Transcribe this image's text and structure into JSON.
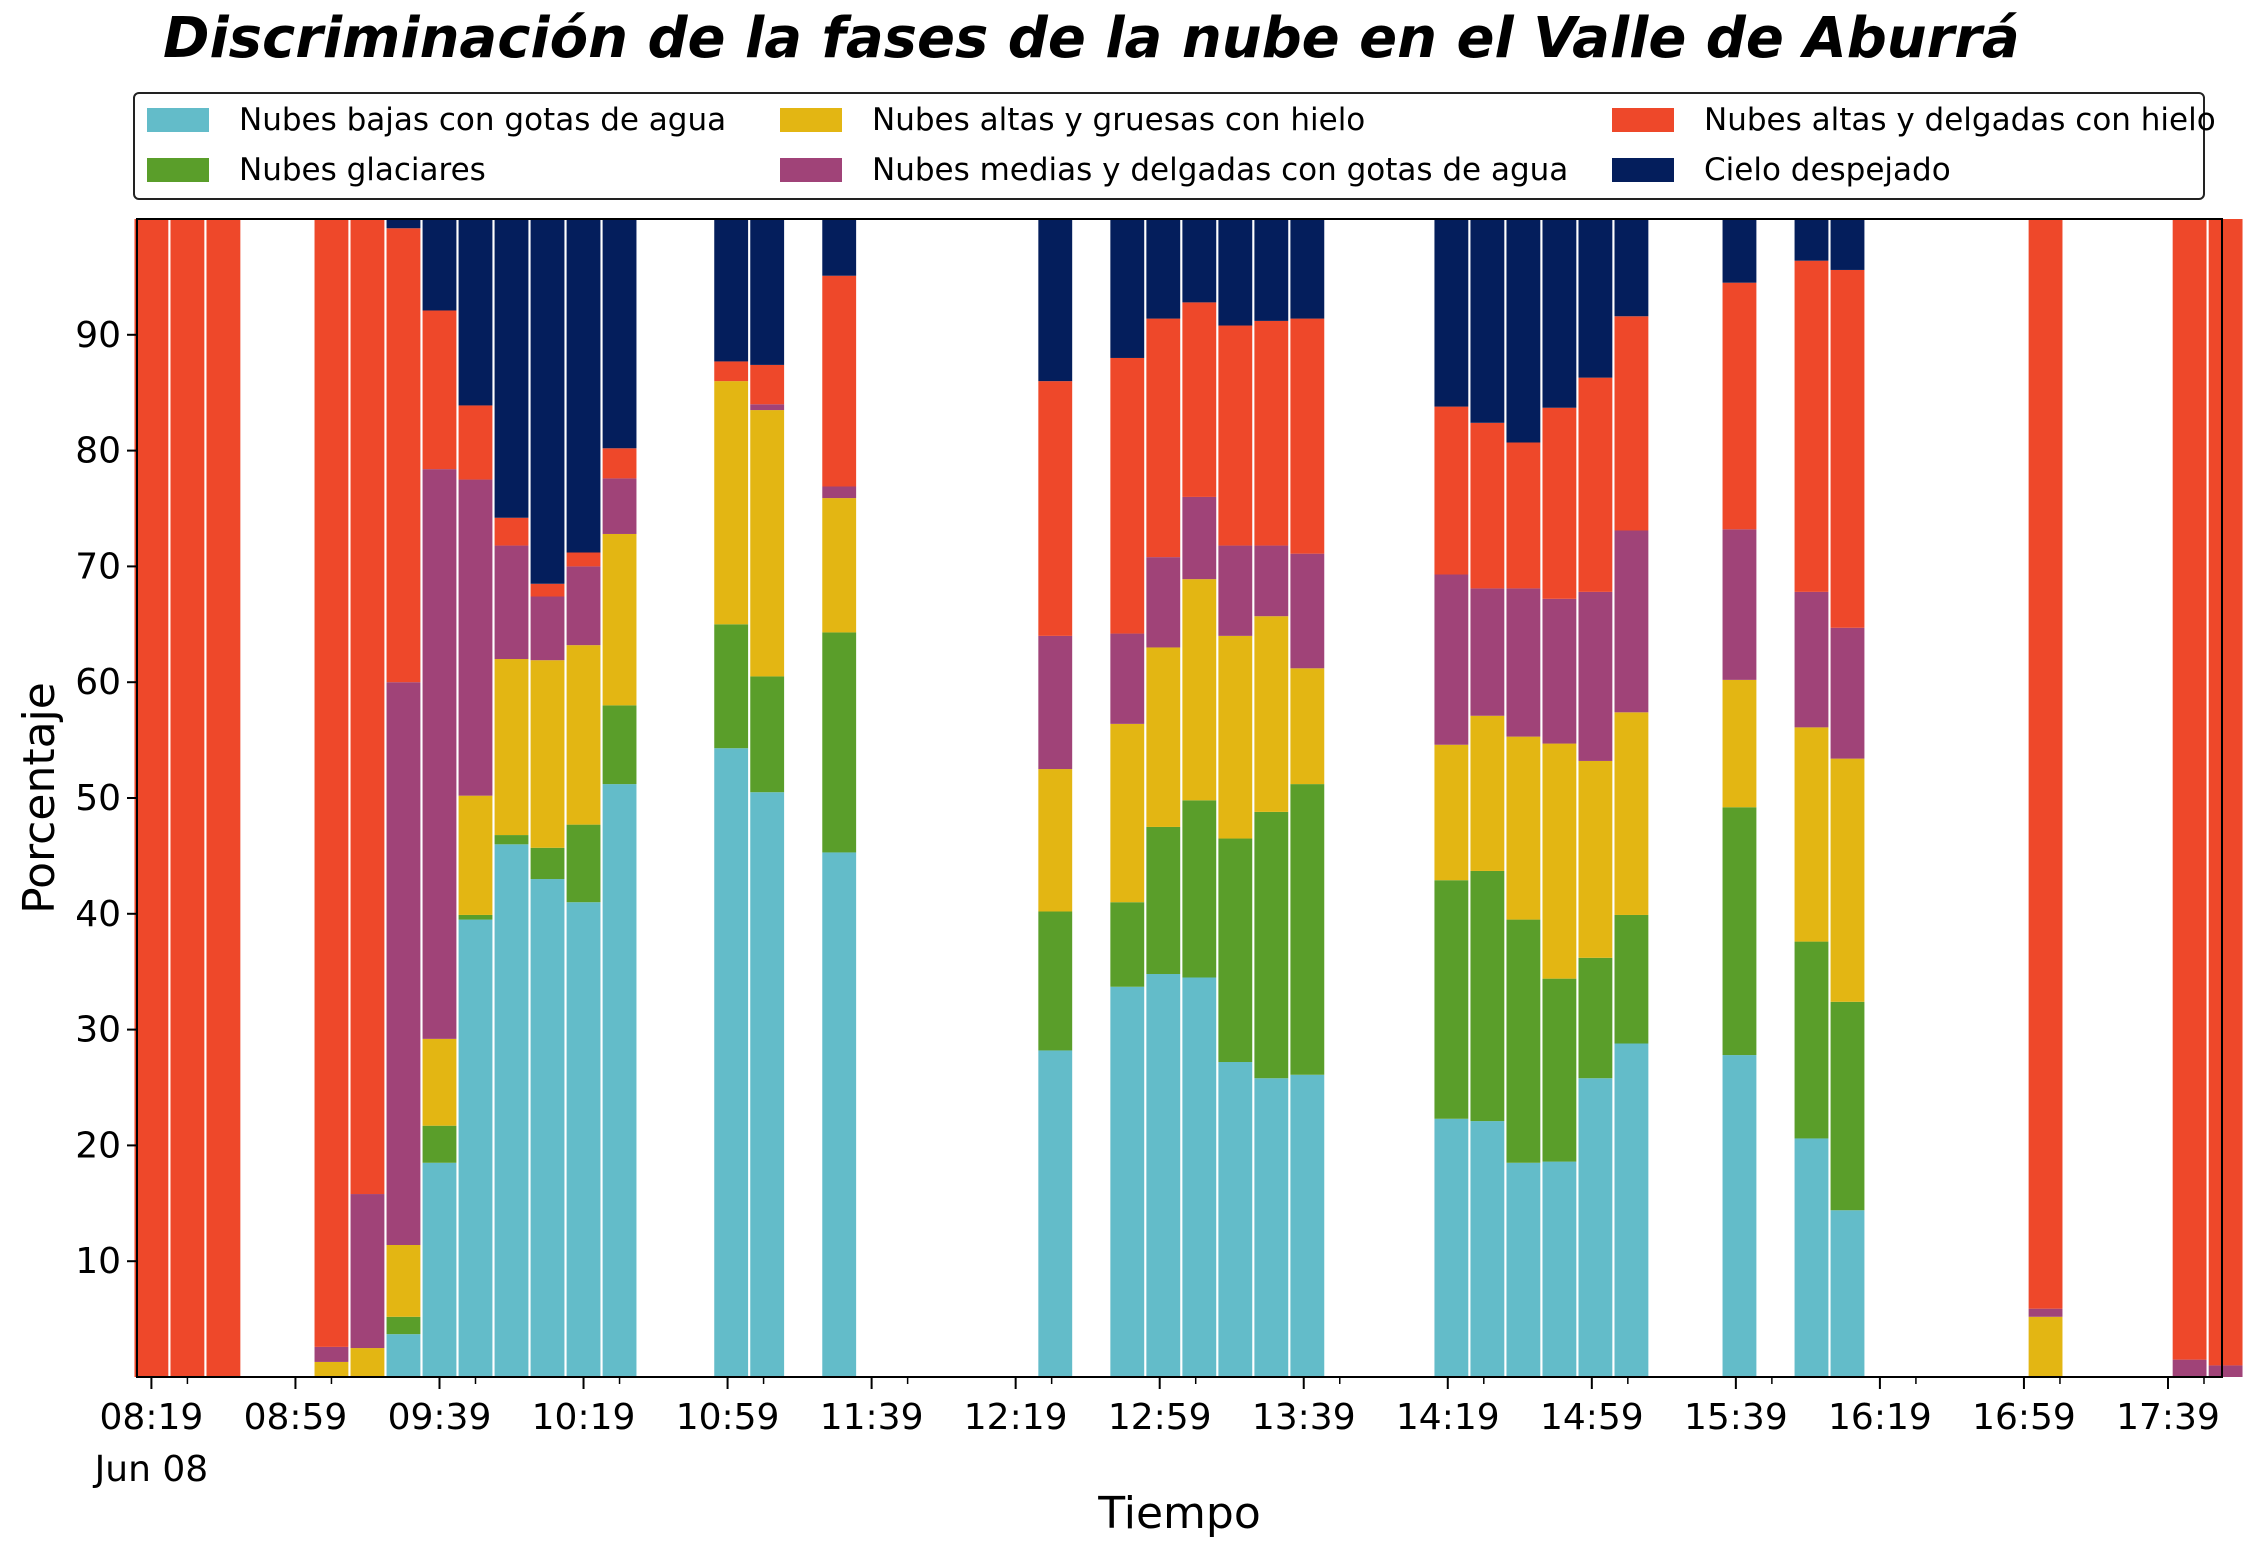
{
  "chart_data": {
    "type": "bar",
    "stacked": true,
    "title": "Discriminación de la fases de la nube en el Valle de Aburrá",
    "xlabel": "Tiempo",
    "ylabel": "Porcentaje",
    "ylim": [
      0,
      100
    ],
    "yticks": [
      10,
      20,
      30,
      40,
      50,
      60,
      70,
      80,
      90
    ],
    "x_unit": "minutes",
    "xlim": [
      "08:15",
      "17:54"
    ],
    "xtick_labels": [
      "08:19",
      "08:59",
      "09:39",
      "10:19",
      "10:59",
      "11:39",
      "12:19",
      "12:59",
      "13:39",
      "14:19",
      "14:59",
      "15:39",
      "16:19",
      "16:59",
      "17:39"
    ],
    "date_label": "Jun 08",
    "legend_placement": "top, outside plot, 3 columns",
    "grid": false,
    "x": [
      "08:19",
      "08:29",
      "08:39",
      "09:09",
      "09:19",
      "09:29",
      "09:39",
      "09:49",
      "09:59",
      "10:09",
      "10:19",
      "10:29",
      "11:00",
      "11:10",
      "11:30",
      "12:30",
      "12:50",
      "13:00",
      "13:10",
      "13:20",
      "13:30",
      "13:40",
      "14:20",
      "14:30",
      "14:40",
      "14:50",
      "15:00",
      "15:10",
      "15:40",
      "16:00",
      "16:10",
      "17:05",
      "17:45",
      "17:55"
    ],
    "series": [
      {
        "name": "Nubes bajas con gotas de agua",
        "color": "#63bcc9",
        "values": [
          0,
          0,
          0,
          0,
          0,
          3.7,
          18.5,
          39.5,
          46,
          43,
          41,
          51.2,
          54.3,
          50.5,
          45.3,
          28.2,
          33.7,
          34.8,
          34.5,
          27.2,
          25.8,
          26.1,
          22.3,
          22.1,
          18.5,
          18.6,
          25.8,
          28.8,
          27.8,
          20.6,
          14.4,
          0,
          0,
          0
        ]
      },
      {
        "name": "Nubes glaciares",
        "color": "#5a9e2a",
        "values": [
          0,
          0,
          0,
          0,
          0,
          1.5,
          3.2,
          0.4,
          0.8,
          2.7,
          6.7,
          6.8,
          10.7,
          10,
          19,
          12,
          7.3,
          12.7,
          15.3,
          19.3,
          23,
          25.1,
          20.6,
          21.6,
          21,
          15.8,
          10.4,
          11.1,
          21.4,
          17,
          18,
          0,
          0,
          0
        ]
      },
      {
        "name": "Nubes altas y gruesas con hielo",
        "color": "#e3b613",
        "values": [
          0,
          0,
          0,
          1.3,
          2.5,
          6.2,
          7.5,
          10.3,
          15.2,
          16.2,
          15.5,
          14.8,
          21,
          23,
          11.6,
          12.3,
          15.4,
          15.5,
          19.1,
          17.5,
          16.9,
          10,
          11.7,
          13.4,
          15.8,
          20.3,
          17,
          17.5,
          11,
          18.5,
          21,
          5.2,
          0,
          0
        ]
      },
      {
        "name": "Nubes medias y delgadas con gotas de agua",
        "color": "#a04378",
        "values": [
          0,
          0,
          0,
          1.3,
          13.3,
          48.6,
          49.2,
          27.3,
          9.8,
          5.5,
          6.8,
          4.8,
          0,
          0.5,
          1,
          11.5,
          7.8,
          7.8,
          7.1,
          7.8,
          6.1,
          9.9,
          14.7,
          11,
          12.8,
          12.5,
          14.6,
          15.7,
          13,
          11.7,
          11.3,
          0.7,
          1.5,
          1
        ]
      },
      {
        "name": "Nubes altas y delgadas con hielo",
        "color": "#ee482a",
        "values": [
          100,
          100,
          100,
          97.4,
          84.2,
          39.2,
          13.7,
          6.4,
          2.4,
          1.1,
          1.2,
          2.6,
          1.7,
          3.4,
          18.2,
          22,
          23.8,
          20.6,
          16.8,
          19,
          19.4,
          20.3,
          14.5,
          14.3,
          12.6,
          16.5,
          18.5,
          18.5,
          21.3,
          28.6,
          30.9,
          94.1,
          98.5,
          99
        ]
      },
      {
        "name": "Cielo despejado",
        "color": "#041e5c",
        "values": [
          0,
          0,
          0,
          0,
          0,
          0.8,
          7.9,
          16.1,
          25.8,
          31.5,
          28.8,
          19.8,
          12.3,
          12.6,
          4.9,
          14,
          12,
          8.6,
          7.2,
          9.2,
          8.8,
          8.6,
          16.2,
          17.6,
          19.3,
          16.3,
          13.7,
          8.4,
          5.5,
          3.6,
          4.4,
          0,
          0,
          0
        ]
      }
    ]
  }
}
